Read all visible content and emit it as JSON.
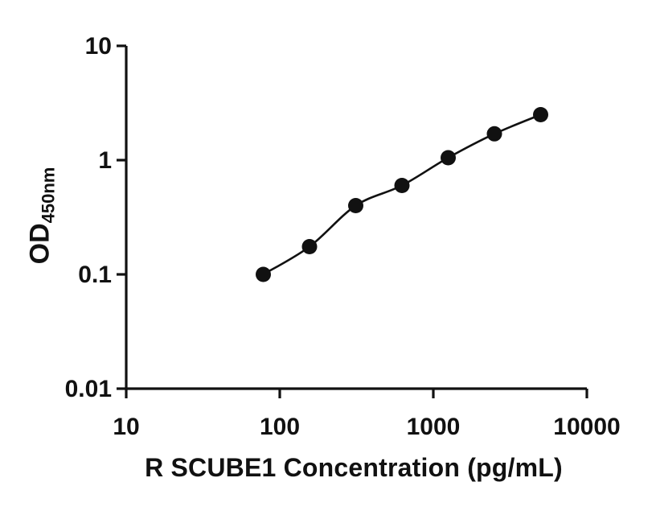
{
  "chart_data": {
    "type": "scatter",
    "x": [
      78.125,
      156.25,
      312.5,
      625,
      1250,
      2500,
      5000
    ],
    "y": [
      0.1,
      0.175,
      0.4,
      0.6,
      1.05,
      1.7,
      2.5
    ],
    "title": "",
    "xlabel": "R SCUBE1 Concentration (pg/mL)",
    "ylabel_main": "OD",
    "ylabel_sub": "450nm",
    "xscale": "log",
    "yscale": "log",
    "xlim": [
      10,
      10000
    ],
    "ylim": [
      0.01,
      10
    ],
    "x_ticks": [
      10,
      100,
      1000,
      10000
    ],
    "x_tick_labels": [
      "10",
      "100",
      "1000",
      "10000"
    ],
    "y_ticks": [
      0.01,
      0.1,
      1,
      10
    ],
    "y_tick_labels": [
      "0.01",
      "0.1",
      "1",
      "10"
    ],
    "grid": false,
    "legend": "none",
    "marker_color": "#111111",
    "line_color": "#111111",
    "axis_color": "#111111"
  }
}
